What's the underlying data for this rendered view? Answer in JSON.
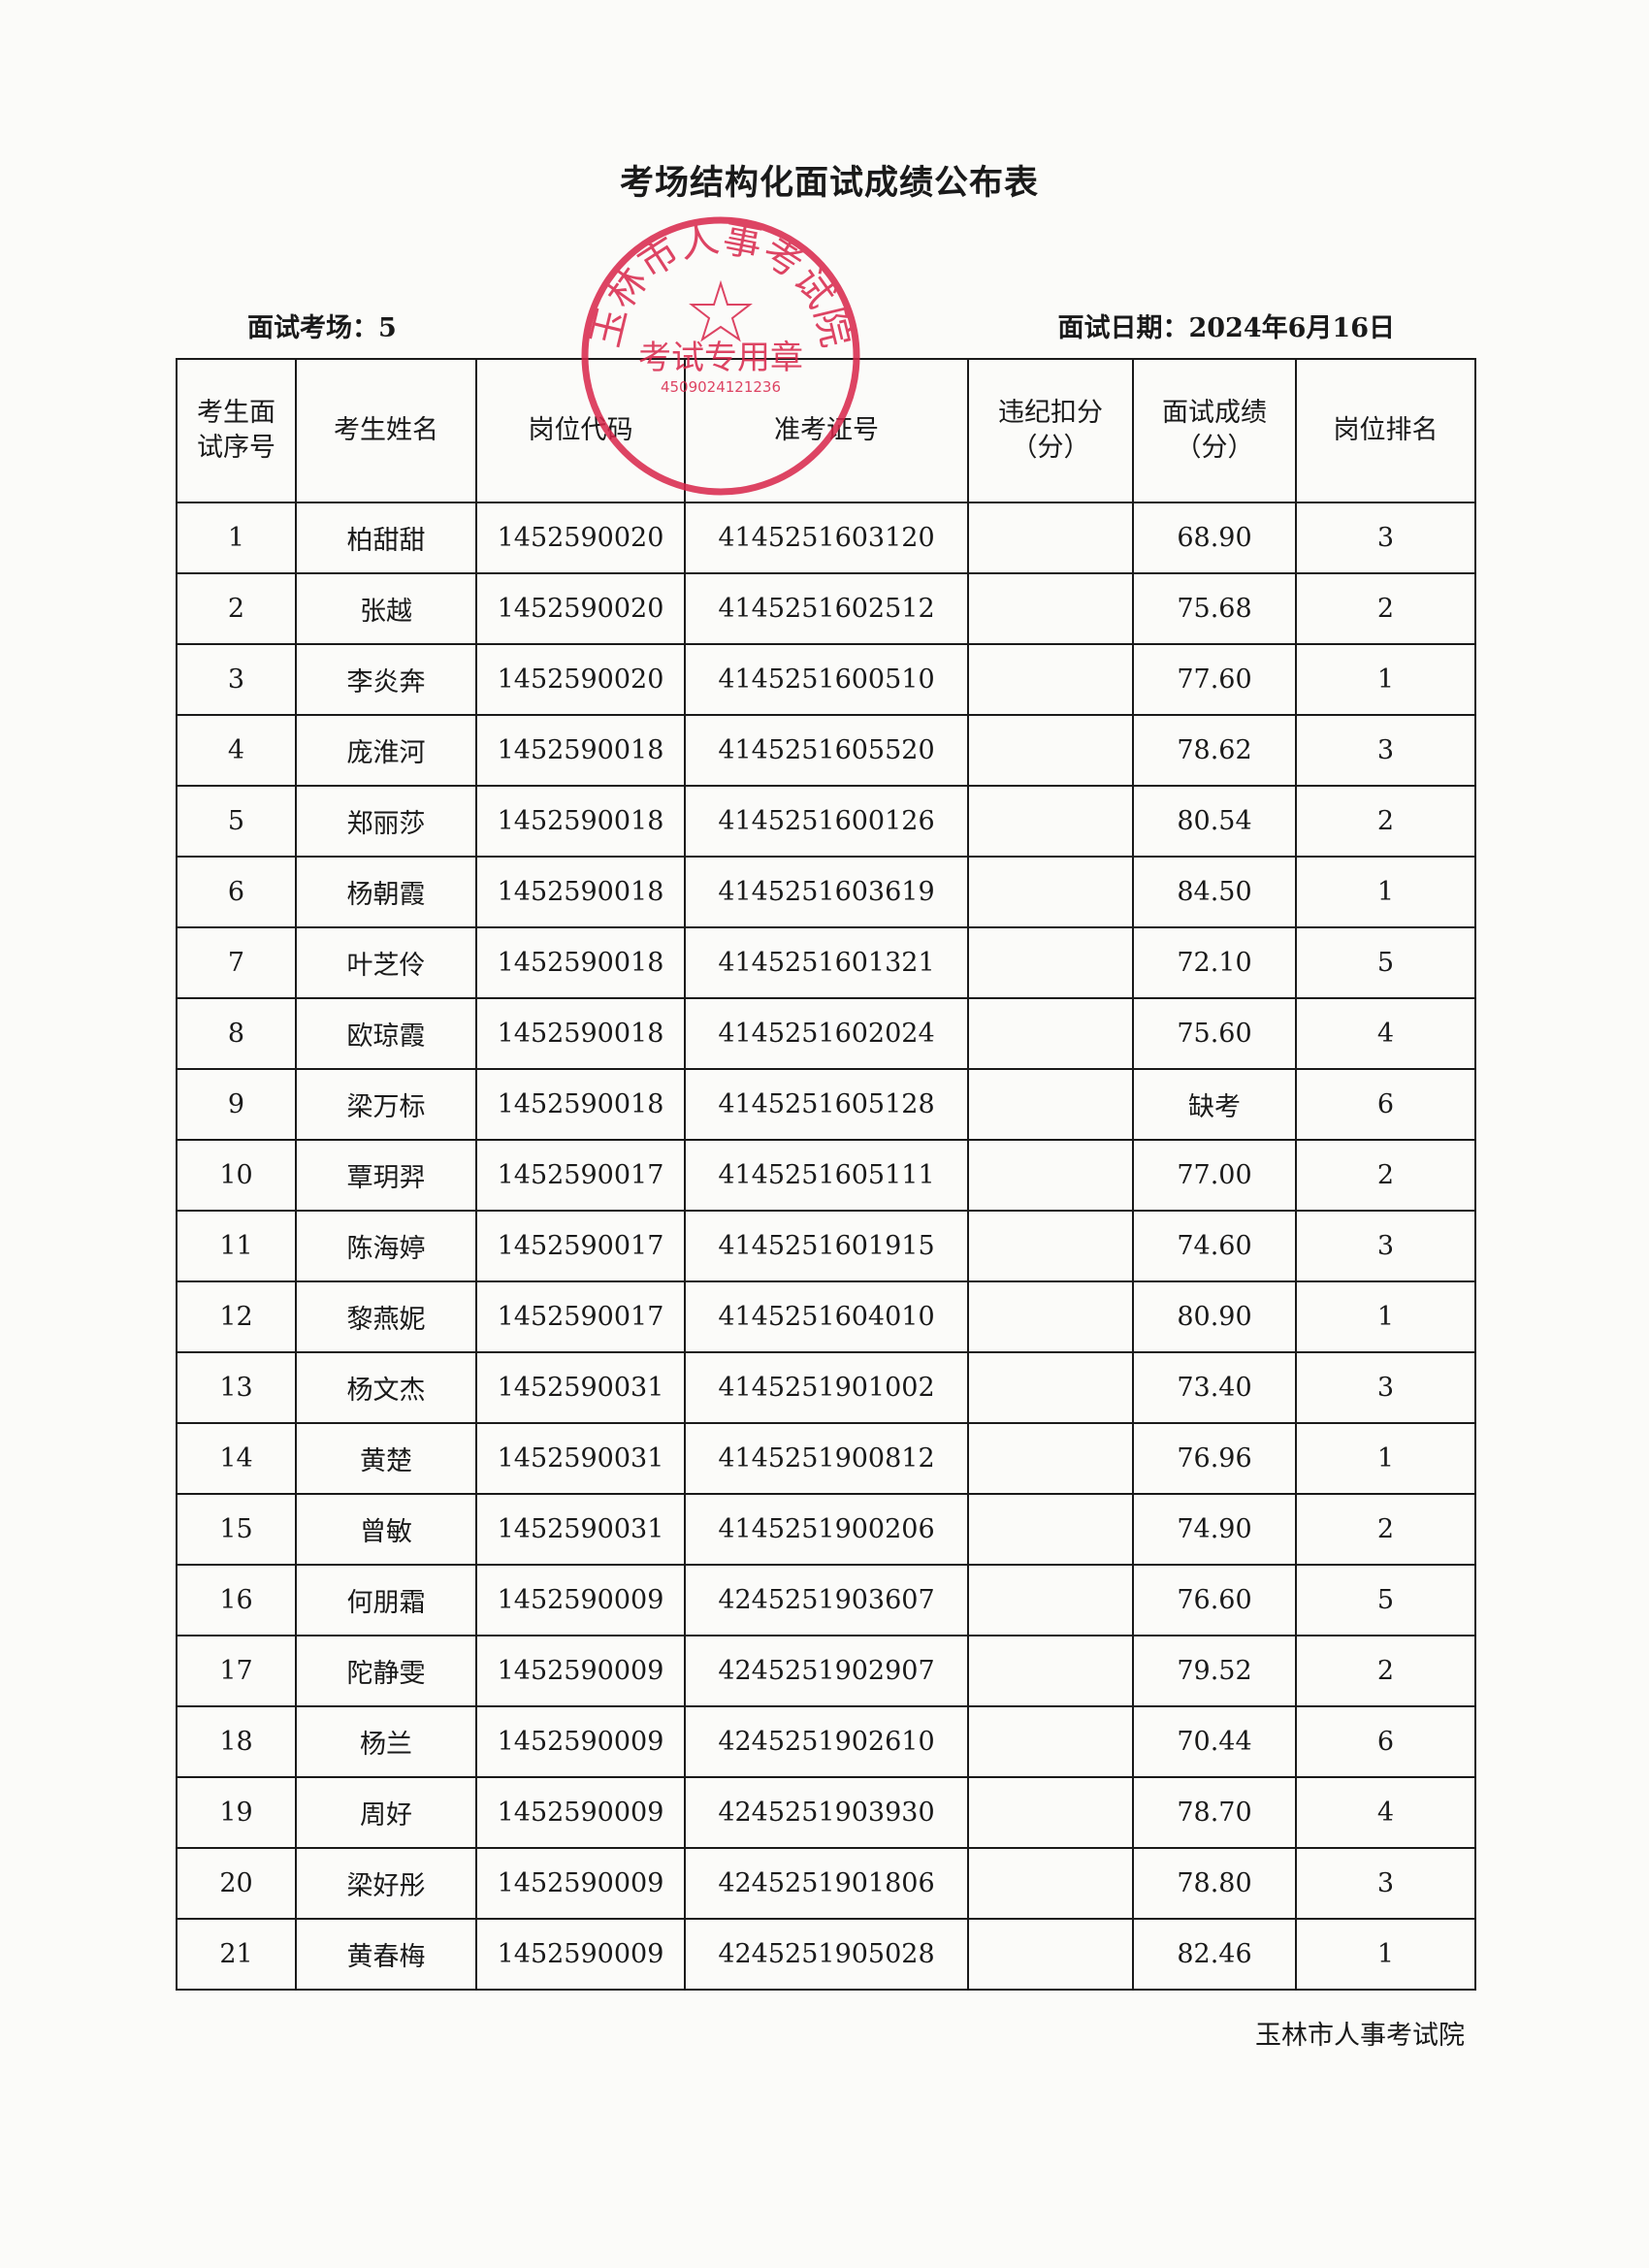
{
  "title": "考场结构化面试成绩公布表",
  "exam_room_label": "面试考场：5",
  "exam_date_label": "面试日期：2024年6月16日",
  "columns": [
    "考生面试序号",
    "考生姓名",
    "岗位代码",
    "准考证号",
    "违纪扣分（分）",
    "面试成绩（分）",
    "岗位排名"
  ],
  "columns_display": [
    [
      "考生面",
      "试序号"
    ],
    [
      "考生姓名"
    ],
    [
      "岗位代码"
    ],
    [
      "准考证号"
    ],
    [
      "违纪扣分",
      "（分）"
    ],
    [
      "面试成绩",
      "（分）"
    ],
    [
      "岗位排名"
    ]
  ],
  "rows": [
    {
      "seq": "1",
      "name": "柏甜甜",
      "post": "1452590020",
      "ticket": "4145251603120",
      "deduct": "",
      "score": "68.90",
      "rank": "3"
    },
    {
      "seq": "2",
      "name": "张越",
      "post": "1452590020",
      "ticket": "4145251602512",
      "deduct": "",
      "score": "75.68",
      "rank": "2"
    },
    {
      "seq": "3",
      "name": "李炎奔",
      "post": "1452590020",
      "ticket": "4145251600510",
      "deduct": "",
      "score": "77.60",
      "rank": "1"
    },
    {
      "seq": "4",
      "name": "庞淮河",
      "post": "1452590018",
      "ticket": "4145251605520",
      "deduct": "",
      "score": "78.62",
      "rank": "3"
    },
    {
      "seq": "5",
      "name": "郑丽莎",
      "post": "1452590018",
      "ticket": "4145251600126",
      "deduct": "",
      "score": "80.54",
      "rank": "2"
    },
    {
      "seq": "6",
      "name": "杨朝霞",
      "post": "1452590018",
      "ticket": "4145251603619",
      "deduct": "",
      "score": "84.50",
      "rank": "1"
    },
    {
      "seq": "7",
      "name": "叶芝伶",
      "post": "1452590018",
      "ticket": "4145251601321",
      "deduct": "",
      "score": "72.10",
      "rank": "5"
    },
    {
      "seq": "8",
      "name": "欧琼霞",
      "post": "1452590018",
      "ticket": "4145251602024",
      "deduct": "",
      "score": "75.60",
      "rank": "4"
    },
    {
      "seq": "9",
      "name": "梁万标",
      "post": "1452590018",
      "ticket": "4145251605128",
      "deduct": "",
      "score": "缺考",
      "rank": "6"
    },
    {
      "seq": "10",
      "name": "覃玥羿",
      "post": "1452590017",
      "ticket": "4145251605111",
      "deduct": "",
      "score": "77.00",
      "rank": "2"
    },
    {
      "seq": "11",
      "name": "陈海婷",
      "post": "1452590017",
      "ticket": "4145251601915",
      "deduct": "",
      "score": "74.60",
      "rank": "3"
    },
    {
      "seq": "12",
      "name": "黎燕妮",
      "post": "1452590017",
      "ticket": "4145251604010",
      "deduct": "",
      "score": "80.90",
      "rank": "1"
    },
    {
      "seq": "13",
      "name": "杨文杰",
      "post": "1452590031",
      "ticket": "4145251901002",
      "deduct": "",
      "score": "73.40",
      "rank": "3"
    },
    {
      "seq": "14",
      "name": "黄楚",
      "post": "1452590031",
      "ticket": "4145251900812",
      "deduct": "",
      "score": "76.96",
      "rank": "1"
    },
    {
      "seq": "15",
      "name": "曾敏",
      "post": "1452590031",
      "ticket": "4145251900206",
      "deduct": "",
      "score": "74.90",
      "rank": "2"
    },
    {
      "seq": "16",
      "name": "何朋霜",
      "post": "1452590009",
      "ticket": "4245251903607",
      "deduct": "",
      "score": "76.60",
      "rank": "5"
    },
    {
      "seq": "17",
      "name": "陀静雯",
      "post": "1452590009",
      "ticket": "4245251902907",
      "deduct": "",
      "score": "79.52",
      "rank": "2"
    },
    {
      "seq": "18",
      "name": "杨兰",
      "post": "1452590009",
      "ticket": "4245251902610",
      "deduct": "",
      "score": "70.44",
      "rank": "6"
    },
    {
      "seq": "19",
      "name": "周好",
      "post": "1452590009",
      "ticket": "4245251903930",
      "deduct": "",
      "score": "78.70",
      "rank": "4"
    },
    {
      "seq": "20",
      "name": "梁好彤",
      "post": "1452590009",
      "ticket": "4245251901806",
      "deduct": "",
      "score": "78.80",
      "rank": "3"
    },
    {
      "seq": "21",
      "name": "黄春梅",
      "post": "1452590009",
      "ticket": "4245251905028",
      "deduct": "",
      "score": "82.46",
      "rank": "1"
    }
  ],
  "footer": "玉林市人事考试院",
  "stamp": {
    "top_text": "玉林市人事考试院",
    "bottom_text": "考试专用章",
    "code": "4509024121236",
    "color": "#d8254a"
  }
}
